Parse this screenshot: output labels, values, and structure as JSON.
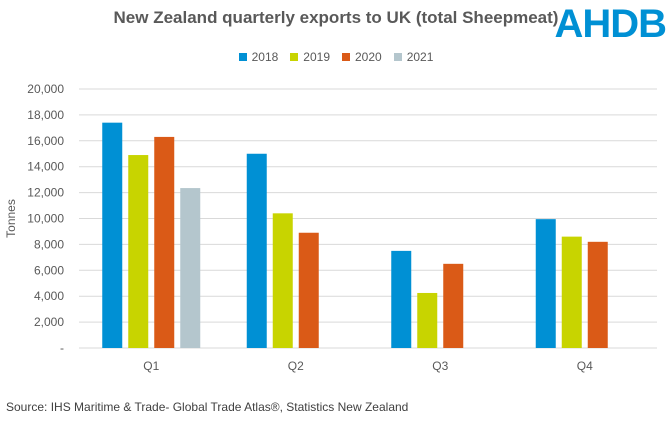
{
  "chart_data": {
    "type": "bar",
    "title": "New Zealand quarterly exports to UK (total Sheepmeat)",
    "xlabel": "",
    "ylabel": "Tonnes",
    "categories": [
      "Q1",
      "Q2",
      "Q3",
      "Q4"
    ],
    "series": [
      {
        "name": "2018",
        "color": "#0090d4",
        "values": [
          17400,
          15000,
          7500,
          9950
        ]
      },
      {
        "name": "2019",
        "color": "#c8d400",
        "values": [
          14900,
          10400,
          4250,
          8600
        ]
      },
      {
        "name": "2020",
        "color": "#da5a17",
        "values": [
          16300,
          8900,
          6500,
          8200
        ]
      },
      {
        "name": "2021",
        "color": "#b4c6cd",
        "values": [
          12350,
          null,
          null,
          null
        ]
      }
    ],
    "ylim": [
      0,
      20000
    ],
    "yticks": [
      0,
      2000,
      4000,
      6000,
      8000,
      10000,
      12000,
      14000,
      16000,
      18000,
      20000
    ],
    "ytick_labels": [
      "-",
      "2,000",
      "4,000",
      "6,000",
      "8,000",
      "10,000",
      "12,000",
      "14,000",
      "16,000",
      "18,000",
      "20,000"
    ],
    "grid": true,
    "legend_position": "top"
  },
  "logo_text": "AHDB",
  "source": "Source:  IHS Maritime & Trade- Global Trade Atlas®, Statistics New Zealand"
}
